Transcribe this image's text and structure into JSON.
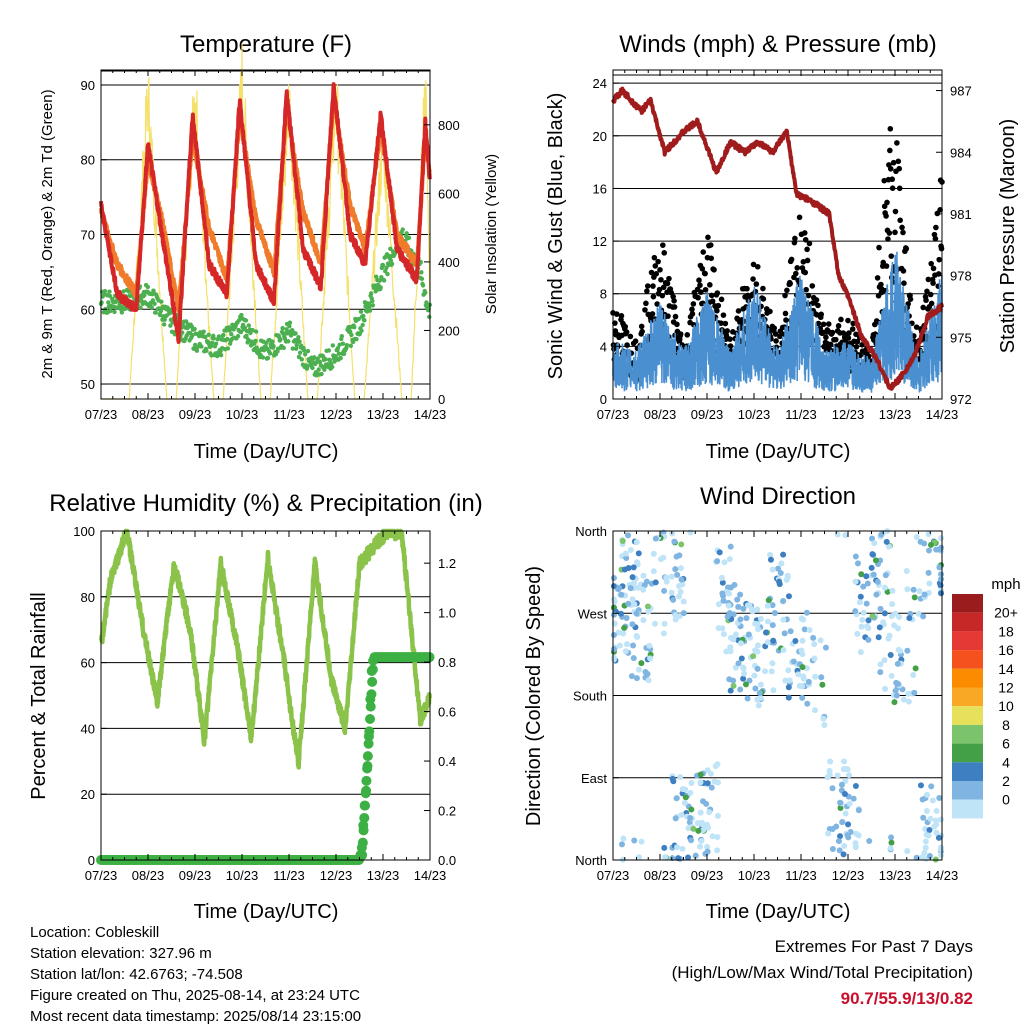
{
  "x_ticks": [
    "07/23",
    "08/23",
    "09/23",
    "10/23",
    "11/23",
    "12/23",
    "13/23",
    "14/23"
  ],
  "panels": {
    "temperature": {
      "title": "Temperature (F)",
      "xlabel": "Time (Day/UTC)",
      "ylabel_left": "2m & 9m T (Red, Orange) & 2m Td (Green)",
      "ylabel_right": "Solar Insolation (Yellow)",
      "left_ticks": [
        "50",
        "60",
        "70",
        "80",
        "90"
      ],
      "right_ticks": [
        "0",
        "200",
        "400",
        "600",
        "800"
      ]
    },
    "winds": {
      "title": "Winds (mph) & Pressure (mb)",
      "xlabel": "Time (Day/UTC)",
      "ylabel_left": "Sonic Wind & Gust (Blue, Black)",
      "ylabel_right": "Station Pressure (Maroon)",
      "left_ticks": [
        "0",
        "4",
        "8",
        "12",
        "16",
        "20",
        "24"
      ],
      "right_ticks": [
        "972",
        "975",
        "978",
        "981",
        "984",
        "987"
      ]
    },
    "humidity": {
      "title": "Relative Humidity (%) & Precipitation (in)",
      "xlabel": "Time (Day/UTC)",
      "ylabel_left": "Percent & Total Rainfall",
      "left_ticks": [
        "0",
        "20",
        "40",
        "60",
        "80",
        "100"
      ],
      "right_ticks": [
        "0.0",
        "0.2",
        "0.4",
        "0.6",
        "0.8",
        "1.0",
        "1.2"
      ]
    },
    "direction": {
      "title": "Wind Direction",
      "xlabel": "Time (Day/UTC)",
      "ylabel_left": "Direction (Colored By Speed)",
      "left_ticks": [
        "North",
        "East",
        "South",
        "West",
        "North"
      ],
      "legend_title": "mph",
      "legend_labels": [
        "20+",
        "18",
        "16",
        "14",
        "12",
        "10",
        "8",
        "6",
        "4",
        "2",
        "0"
      ],
      "legend_colors": [
        "#9b1c1c",
        "#c62828",
        "#e53935",
        "#f4511e",
        "#fb8c00",
        "#f9a825",
        "#e6e05a",
        "#7cc46b",
        "#43a047",
        "#3d7fc0",
        "#7fb5e0",
        "#bfe3f7"
      ]
    }
  },
  "colors": {
    "temp_2m": "#d62728",
    "temp_9m": "#f07b2a",
    "dewpoint": "#4caf50",
    "solar": "#f5e16a",
    "wind": "#4a90d0",
    "gust": "#000000",
    "pressure": "#a01c1c",
    "rh": "#8bc34a",
    "precip": "#3cb043"
  },
  "chart_data": [
    {
      "type": "line",
      "title": "Temperature (F)",
      "xlabel": "Time (Day/UTC)",
      "ylabel": "2m & 9m T (Red, Orange) & 2m Td (Green)",
      "y2label": "Solar Insolation (Yellow)",
      "xlim": [
        0,
        7
      ],
      "ylim": [
        48,
        92
      ],
      "y2lim": [
        0,
        960
      ],
      "series": [
        {
          "name": "2m T",
          "x": [
            0,
            0.35,
            0.75,
            1.0,
            1.3,
            1.65,
            1.95,
            2.3,
            2.68,
            2.95,
            3.3,
            3.68,
            3.95,
            4.3,
            4.68,
            4.95,
            5.3,
            5.62,
            5.95,
            6.3,
            6.72,
            6.9,
            7.0
          ],
          "y": [
            74,
            62,
            60,
            82,
            70,
            56,
            86,
            66,
            62,
            88,
            66,
            61,
            89,
            68,
            63,
            90,
            70,
            66,
            86,
            68,
            64,
            85,
            77
          ]
        },
        {
          "name": "9m T",
          "x": [
            0,
            0.35,
            0.75,
            1.0,
            1.3,
            1.65,
            1.95,
            2.3,
            2.68,
            2.95,
            3.3,
            3.68,
            3.95,
            4.3,
            4.68,
            4.95,
            5.3,
            5.62,
            5.95,
            6.3,
            6.72,
            6.9,
            7.0
          ],
          "y": [
            73,
            66,
            62,
            80,
            72,
            60,
            83,
            71,
            64,
            86,
            72,
            65,
            87,
            73,
            66,
            88,
            74,
            68,
            84,
            70,
            66,
            83,
            78
          ]
        },
        {
          "name": "2m Td",
          "x": [
            0,
            0.5,
            1.0,
            1.4,
            2.0,
            2.5,
            3.0,
            3.5,
            4.0,
            4.5,
            5.0,
            5.5,
            6.0,
            6.4,
            6.8,
            7.0
          ],
          "y": [
            61,
            61,
            62,
            59,
            56,
            55,
            58,
            54,
            57,
            52,
            54,
            58,
            65,
            70,
            65,
            59
          ]
        },
        {
          "name": "Solar Insolation",
          "x": [
            0.6,
            1.0,
            1.4,
            1.6,
            2.0,
            2.4,
            2.6,
            3.0,
            3.4,
            3.6,
            4.0,
            4.4,
            4.6,
            5.0,
            5.4,
            5.6,
            6.0,
            6.4,
            6.6,
            6.9,
            7.0
          ],
          "y": [
            0,
            880,
            0,
            0,
            880,
            0,
            0,
            930,
            0,
            0,
            880,
            0,
            0,
            880,
            0,
            0,
            760,
            0,
            0,
            920,
            300
          ]
        }
      ]
    },
    {
      "type": "line",
      "title": "Winds (mph) & Pressure (mb)",
      "xlabel": "Time (Day/UTC)",
      "ylabel": "Sonic Wind & Gust (Blue, Black)",
      "y2label": "Station Pressure (Maroon)",
      "xlim": [
        0,
        7
      ],
      "ylim": [
        0,
        25
      ],
      "y2lim": [
        972,
        988
      ],
      "series": [
        {
          "name": "Sonic Wind",
          "x": [
            0,
            0.5,
            1.0,
            1.5,
            2.0,
            2.5,
            3.0,
            3.5,
            4.0,
            4.5,
            5.0,
            5.5,
            6.0,
            6.5,
            7.0
          ],
          "y": [
            3,
            2.5,
            5,
            2.5,
            5.5,
            2.5,
            6,
            2.5,
            6.5,
            2.5,
            3,
            2,
            8,
            2,
            7
          ]
        },
        {
          "name": "Gust",
          "x": [
            0,
            0.5,
            1.0,
            1.5,
            2.0,
            2.5,
            3.0,
            3.5,
            4.0,
            4.5,
            5.0,
            5.5,
            5.9,
            6.5,
            7.0
          ],
          "y": [
            7,
            4,
            12,
            4,
            12,
            4,
            11,
            4,
            14,
            5,
            6,
            3,
            22,
            4,
            16
          ]
        },
        {
          "name": "Station Pressure",
          "x": [
            0,
            0.2,
            0.6,
            0.8,
            1.1,
            1.5,
            1.8,
            2.2,
            2.5,
            2.8,
            3.1,
            3.4,
            3.7,
            3.9,
            4.3,
            4.6,
            4.8,
            5.0,
            5.3,
            5.6,
            5.9,
            6.1,
            6.4,
            6.7,
            7.0
          ],
          "y": [
            986.5,
            987,
            986,
            986.5,
            984,
            985,
            985.5,
            983,
            984.5,
            984,
            984.5,
            984,
            985,
            982,
            981.5,
            981,
            978,
            977,
            975,
            974,
            972.5,
            973,
            974,
            976,
            976.5
          ]
        }
      ]
    },
    {
      "type": "line",
      "title": "Relative Humidity (%) & Precipitation (in)",
      "xlabel": "Time (Day/UTC)",
      "ylabel": "Percent & Total Rainfall",
      "xlim": [
        0,
        7
      ],
      "ylim": [
        0,
        100
      ],
      "y2lim": [
        0,
        1.33
      ],
      "series": [
        {
          "name": "Relative Humidity",
          "x": [
            0,
            0.2,
            0.55,
            0.9,
            1.2,
            1.55,
            1.9,
            2.2,
            2.55,
            2.9,
            3.2,
            3.55,
            3.9,
            4.2,
            4.55,
            4.9,
            5.2,
            5.5,
            5.8,
            6.1,
            6.4,
            6.8,
            7.0
          ],
          "y": [
            65,
            85,
            100,
            70,
            48,
            90,
            70,
            36,
            90,
            65,
            37,
            92,
            60,
            29,
            90,
            55,
            40,
            90,
            95,
            100,
            99,
            42,
            50
          ]
        },
        {
          "name": "Total Precipitation",
          "x": [
            0,
            5.5,
            5.55,
            5.6,
            5.65,
            5.7,
            5.75,
            5.8,
            7.0
          ],
          "y": [
            0,
            0,
            0.05,
            0.2,
            0.3,
            0.5,
            0.75,
            0.82,
            0.82
          ]
        }
      ]
    },
    {
      "type": "scatter",
      "title": "Wind Direction",
      "xlabel": "Time (Day/UTC)",
      "ylabel": "Direction (Colored By Speed)",
      "xlim": [
        0,
        7
      ],
      "ylim": [
        0,
        360
      ],
      "series": [
        {
          "name": "Wind Direction",
          "x": [
            0.1,
            0.3,
            0.4,
            0.6,
            1.1,
            1.3,
            1.5,
            1.8,
            2.0,
            2.4,
            2.6,
            2.9,
            3.2,
            3.5,
            3.9,
            4.3,
            4.8,
            5.0,
            5.4,
            5.7,
            5.9,
            6.2,
            6.5,
            6.8,
            6.95
          ],
          "y": [
            270,
            300,
            330,
            250,
            300,
            320,
            40,
            50,
            60,
            300,
            240,
            230,
            220,
            280,
            230,
            200,
            60,
            50,
            280,
            330,
            240,
            220,
            320,
            30,
            340
          ]
        }
      ]
    }
  ],
  "info": {
    "location": "Location: Cobleskill",
    "elevation": "Station elevation: 327.96 m",
    "latlon": "Station lat/lon: 42.6763; -74.508",
    "created": "Figure created on Thu, 2025-08-14, at 23:24 UTC",
    "recent": "Most recent data timestamp: 2025/08/14 23:15:00"
  },
  "extremes": {
    "title": "Extremes For Past 7 Days",
    "subtitle": "(High/Low/Max Wind/Total Precipitation)",
    "values": "90.7/55.9/13/0.82"
  }
}
